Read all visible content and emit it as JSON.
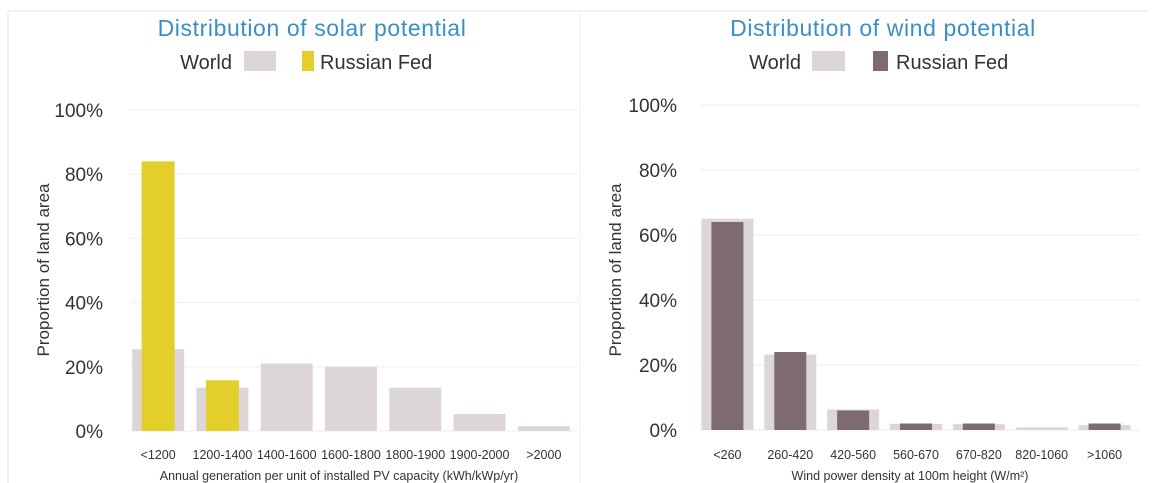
{
  "colors": {
    "title": "#3a8fc4",
    "text": "#333333",
    "world": "#ddd6d8",
    "solar_russia": "#e3cf2a",
    "wind_russia": "#7d6b71",
    "grid": "#eeeeee",
    "frame": "#d9d9d9"
  },
  "chart_data": [
    {
      "type": "bar",
      "title": "Distribution of solar potential",
      "xlabel": "Annual generation per unit of installed PV capacity (kWh/kWp/yr)",
      "ylabel": "Proportion of land area",
      "ylim": [
        0,
        100
      ],
      "yticks": [
        "0%",
        "20%",
        "40%",
        "60%",
        "80%",
        "100%"
      ],
      "ytick_values": [
        0,
        20,
        40,
        60,
        80,
        100
      ],
      "grid": true,
      "legend_position": "top",
      "categories": [
        "<1200",
        "1200-1400",
        "1400-1600",
        "1600-1800",
        "1800-1900",
        "1900-2000",
        ">2000"
      ],
      "series": [
        {
          "name": "World",
          "values": [
            25.5,
            13.5,
            21,
            20,
            13.5,
            5.3,
            1.5
          ]
        },
        {
          "name": "Russian Fed",
          "values": [
            84,
            15.8,
            0,
            0,
            0,
            0,
            0
          ]
        }
      ]
    },
    {
      "type": "bar",
      "title": "Distribution of wind potential",
      "xlabel": "Wind power density at 100m height (W/m²)",
      "ylabel": "Proportion of land area",
      "ylim": [
        0,
        100
      ],
      "yticks": [
        "0%",
        "20%",
        "40%",
        "60%",
        "80%",
        "100%"
      ],
      "ytick_values": [
        0,
        20,
        40,
        60,
        80,
        100
      ],
      "grid": true,
      "legend_position": "top",
      "categories": [
        "<260",
        "260-420",
        "420-560",
        "560-670",
        "670-820",
        "820-1060",
        ">1060"
      ],
      "series": [
        {
          "name": "World",
          "values": [
            65,
            23.2,
            6.3,
            1.9,
            1.8,
            0.8,
            1.5
          ]
        },
        {
          "name": "Russian Fed",
          "values": [
            64,
            24,
            6,
            2,
            2,
            0,
            2
          ]
        }
      ]
    }
  ]
}
